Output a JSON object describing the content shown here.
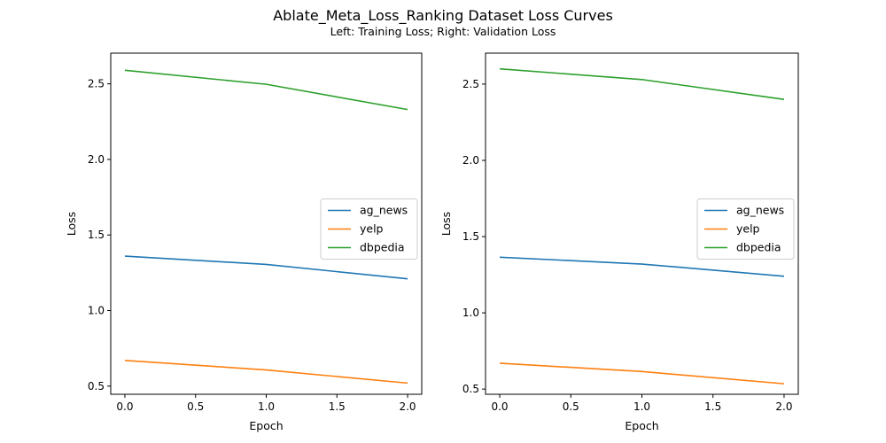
{
  "figure": {
    "title": "Ablate_Meta_Loss_Ranking Dataset Loss Curves",
    "subtitle": "Left: Training Loss; Right: Validation Loss"
  },
  "colors": {
    "ag_news": "#1f77b4",
    "yelp": "#ff7f0e",
    "dbpedia": "#2ca02c"
  },
  "chart_data": [
    {
      "type": "line",
      "xlabel": "Epoch",
      "ylabel": "Loss",
      "xlim": [
        -0.1,
        2.1
      ],
      "ylim": [
        0.446,
        2.703
      ],
      "xticks": [
        0.0,
        0.5,
        1.0,
        1.5,
        2.0
      ],
      "xtick_labels": [
        "0.0",
        "0.5",
        "1.0",
        "1.5",
        "2.0"
      ],
      "yticks": [
        0.5,
        1.0,
        1.5,
        2.0,
        2.5
      ],
      "ytick_labels": [
        "0.5",
        "1.0",
        "1.5",
        "2.0",
        "2.5"
      ],
      "legend": "center-right",
      "grid": false,
      "x": [
        0,
        1,
        2
      ],
      "series": [
        {
          "name": "ag_news",
          "values": [
            1.36,
            1.305,
            1.21
          ]
        },
        {
          "name": "yelp",
          "values": [
            0.67,
            0.607,
            0.52
          ]
        },
        {
          "name": "dbpedia",
          "values": [
            2.59,
            2.497,
            2.33
          ]
        }
      ]
    },
    {
      "type": "line",
      "xlabel": "Epoch",
      "ylabel": "Loss",
      "xlim": [
        -0.1,
        2.1
      ],
      "ylim": [
        0.466,
        2.703
      ],
      "xticks": [
        0.0,
        0.5,
        1.0,
        1.5,
        2.0
      ],
      "xtick_labels": [
        "0.0",
        "0.5",
        "1.0",
        "1.5",
        "2.0"
      ],
      "yticks": [
        0.5,
        1.0,
        1.5,
        2.0,
        2.5
      ],
      "ytick_labels": [
        "0.5",
        "1.0",
        "1.5",
        "2.0",
        "2.5"
      ],
      "legend": "center-right",
      "grid": false,
      "x": [
        0,
        1,
        2
      ],
      "series": [
        {
          "name": "ag_news",
          "values": [
            1.365,
            1.32,
            1.24
          ]
        },
        {
          "name": "yelp",
          "values": [
            0.67,
            0.615,
            0.535
          ]
        },
        {
          "name": "dbpedia",
          "values": [
            2.6,
            2.53,
            2.4
          ]
        }
      ]
    }
  ]
}
